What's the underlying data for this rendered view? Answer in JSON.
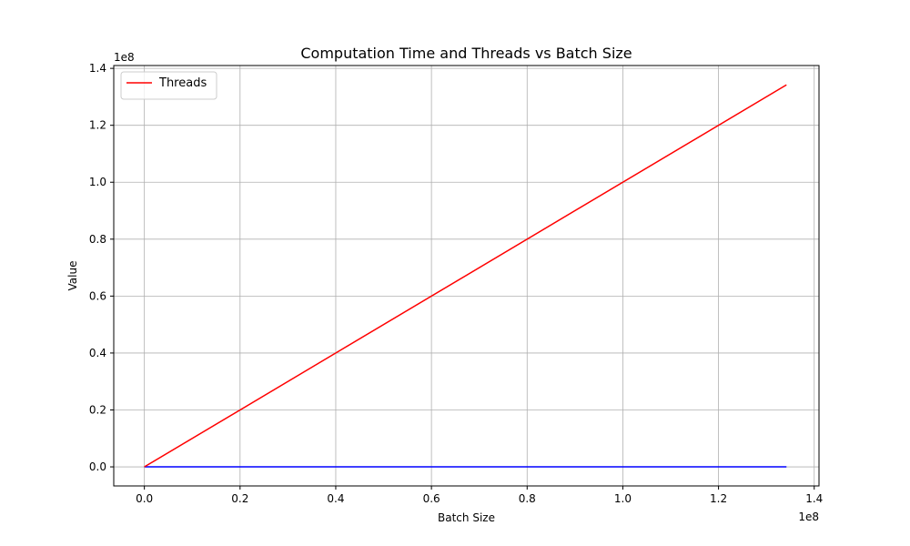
{
  "chart_data": {
    "type": "line",
    "title": "Computation Time and Threads vs Batch Size",
    "xlabel": "Batch Size",
    "ylabel": "Value",
    "x_offset_label": "1e8",
    "y_offset_label": "1e8",
    "xlim": [
      -0.064,
      1.41
    ],
    "ylim": [
      -0.067,
      1.41
    ],
    "x_ticks": [
      0.0,
      0.2,
      0.4,
      0.6,
      0.8,
      1.0,
      1.2,
      1.4
    ],
    "x_tick_labels": [
      "0.0",
      "0.2",
      "0.4",
      "0.6",
      "0.8",
      "1.0",
      "1.2",
      "1.4"
    ],
    "y_ticks": [
      0.0,
      0.2,
      0.4,
      0.6,
      0.8,
      1.0,
      1.2,
      1.4
    ],
    "y_tick_labels": [
      "0.0",
      "0.2",
      "0.4",
      "0.6",
      "0.8",
      "1.0",
      "1.2",
      "1.4"
    ],
    "grid": true,
    "legend_position": "top-left",
    "series": [
      {
        "name": "",
        "color": "#0000ff",
        "x": [
          0.0,
          1.342
        ],
        "y": [
          0.0,
          0.0
        ]
      },
      {
        "name": "Threads",
        "color": "#ff0000",
        "x": [
          0.0,
          1.342
        ],
        "y": [
          0.0,
          1.342
        ]
      }
    ]
  }
}
